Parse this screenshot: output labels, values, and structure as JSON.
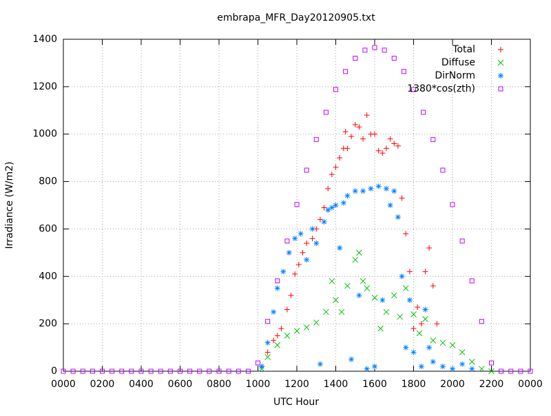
{
  "chart_data": {
    "type": "scatter",
    "title": "embrapa_MFR_Day20120905.txt",
    "x_label": "UTC Hour",
    "y_label": "Irradiance (W/m2)",
    "xlim": [
      0,
      24
    ],
    "ylim": [
      0,
      1400
    ],
    "xticks": [
      {
        "value": 0,
        "label": "0000"
      },
      {
        "value": 2,
        "label": "0200"
      },
      {
        "value": 4,
        "label": "0400"
      },
      {
        "value": 6,
        "label": "0600"
      },
      {
        "value": 8,
        "label": "0800"
      },
      {
        "value": 10,
        "label": "1000"
      },
      {
        "value": 12,
        "label": "1200"
      },
      {
        "value": 14,
        "label": "1400"
      },
      {
        "value": 16,
        "label": "1600"
      },
      {
        "value": 18,
        "label": "1800"
      },
      {
        "value": 20,
        "label": "2000"
      },
      {
        "value": 22,
        "label": "2200"
      },
      {
        "value": 24,
        "label": "0000"
      }
    ],
    "yticks": [
      0,
      200,
      400,
      600,
      800,
      1000,
      1200,
      1400
    ],
    "grid": true,
    "legend": "top-right",
    "series": [
      {
        "name": "Total",
        "color": "#ff0000",
        "marker": "plus",
        "x": [
          10.2,
          10.5,
          10.8,
          11,
          11.2,
          11.5,
          11.7,
          11.9,
          12.1,
          12.3,
          12.5,
          12.8,
          13,
          13.2,
          13.4,
          13.6,
          13.8,
          14,
          14.2,
          14.4,
          14.5,
          14.6,
          14.8,
          15,
          15.2,
          15.4,
          15.6,
          15.8,
          16,
          16.2,
          16.4,
          16.6,
          16.8,
          17,
          17.2,
          17.4,
          17.6,
          17.8,
          18,
          18.2,
          18.4,
          18.6,
          18.8,
          19,
          19.2
        ],
        "values": [
          20,
          80,
          130,
          150,
          180,
          260,
          320,
          410,
          450,
          500,
          540,
          560,
          600,
          640,
          690,
          770,
          830,
          860,
          900,
          940,
          1010,
          940,
          990,
          1040,
          1030,
          980,
          1080,
          1000,
          1000,
          930,
          920,
          940,
          980,
          960,
          950,
          730,
          580,
          420,
          180,
          270,
          200,
          420,
          520,
          360,
          200
        ]
      },
      {
        "name": "Diffuse",
        "color": "#00c000",
        "marker": "cross",
        "x": [
          10.2,
          10.5,
          11,
          11.5,
          12,
          12.5,
          13,
          13.5,
          13.8,
          14,
          14.3,
          14.6,
          15,
          15.2,
          15.4,
          15.6,
          16,
          16.3,
          16.6,
          17,
          17.3,
          17.6,
          18,
          18.3,
          18.6,
          19,
          19.5,
          20,
          20.5,
          21,
          21.5,
          22
        ],
        "values": [
          10,
          60,
          110,
          150,
          170,
          185,
          205,
          250,
          380,
          300,
          250,
          360,
          470,
          500,
          380,
          350,
          310,
          180,
          250,
          320,
          230,
          350,
          240,
          160,
          220,
          130,
          120,
          110,
          80,
          40,
          10,
          0
        ]
      },
      {
        "name": "DirNorm",
        "color": "#0080ff",
        "marker": "star",
        "x": [
          10.2,
          10.5,
          10.8,
          11,
          11.3,
          11.6,
          11.9,
          12.2,
          12.5,
          12.8,
          13,
          13.2,
          13.4,
          13.6,
          13.8,
          14,
          14.2,
          14.4,
          14.6,
          14.8,
          15,
          15.2,
          15.4,
          15.6,
          15.8,
          16,
          16.2,
          16.4,
          16.6,
          16.8,
          17,
          17.2,
          17.4,
          17.6,
          17.8,
          18,
          18.4,
          18.6,
          18.8,
          19,
          19.5,
          20,
          20.5,
          21
        ],
        "values": [
          20,
          120,
          250,
          350,
          420,
          500,
          560,
          580,
          470,
          600,
          540,
          30,
          630,
          680,
          690,
          700,
          520,
          710,
          740,
          50,
          760,
          320,
          760,
          10,
          770,
          20,
          780,
          300,
          770,
          700,
          760,
          650,
          400,
          100,
          300,
          80,
          20,
          260,
          100,
          40,
          20,
          10,
          30,
          10
        ]
      },
      {
        "name": "1380*cos(zth)",
        "color": "#c000ff",
        "marker": "square",
        "x": [
          0,
          0.5,
          1,
          1.5,
          2,
          2.5,
          3,
          3.5,
          4,
          4.5,
          5,
          5.5,
          6,
          6.5,
          7,
          7.5,
          8,
          8.5,
          9,
          9.5,
          10,
          10.5,
          11,
          11.5,
          12,
          12.5,
          13,
          13.5,
          14,
          14.5,
          15,
          15.5,
          16,
          16.5,
          17,
          17.5,
          18,
          18.5,
          19,
          19.5,
          20,
          20.5,
          21,
          21.5,
          22,
          22.5,
          23,
          23.5,
          24
        ],
        "values": [
          0,
          0,
          0,
          0,
          0,
          0,
          0,
          0,
          0,
          0,
          0,
          0,
          0,
          0,
          0,
          0,
          0,
          0,
          0,
          0,
          35,
          210,
          381,
          549,
          703,
          848,
          977,
          1092,
          1188,
          1264,
          1320,
          1354,
          1365,
          1354,
          1320,
          1264,
          1188,
          1092,
          977,
          848,
          703,
          549,
          381,
          210,
          35,
          0,
          0,
          0,
          0
        ]
      }
    ]
  }
}
